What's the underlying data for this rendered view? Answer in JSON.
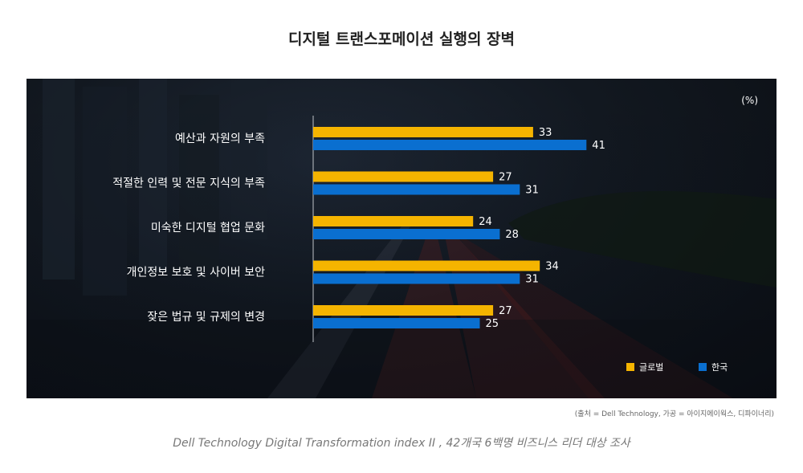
{
  "title": "디지털 트랜스포메이션 실행의 장벽",
  "source_note": "(출처 = Dell Technology, 가공 = 아이지에이웍스, 디파이너리)",
  "footer": "Dell Technology Digital Transformation index II , 42개국 6백명 비즈니스 리더 대상 조사",
  "chart_data": {
    "type": "bar",
    "orientation": "horizontal",
    "title": "디지털 트랜스포메이션 실행의 장벽",
    "unit": "(%)",
    "categories": [
      "예산과 자원의 부족",
      "적절한 인력 및 전문 지식의 부족",
      "미숙한 디지털 협업 문화",
      "개인정보 보호 및 사이버 보안",
      "잦은 법규 및 규제의 변경"
    ],
    "series": [
      {
        "name": "글로벌",
        "color": "#f5b400",
        "values": [
          33,
          27,
          24,
          34,
          27
        ]
      },
      {
        "name": "한국",
        "color": "#0a6fd0",
        "values": [
          41,
          31,
          28,
          31,
          25
        ]
      }
    ],
    "xlim": [
      0,
      100
    ],
    "grid": false,
    "legend_position": "bottom-right"
  }
}
